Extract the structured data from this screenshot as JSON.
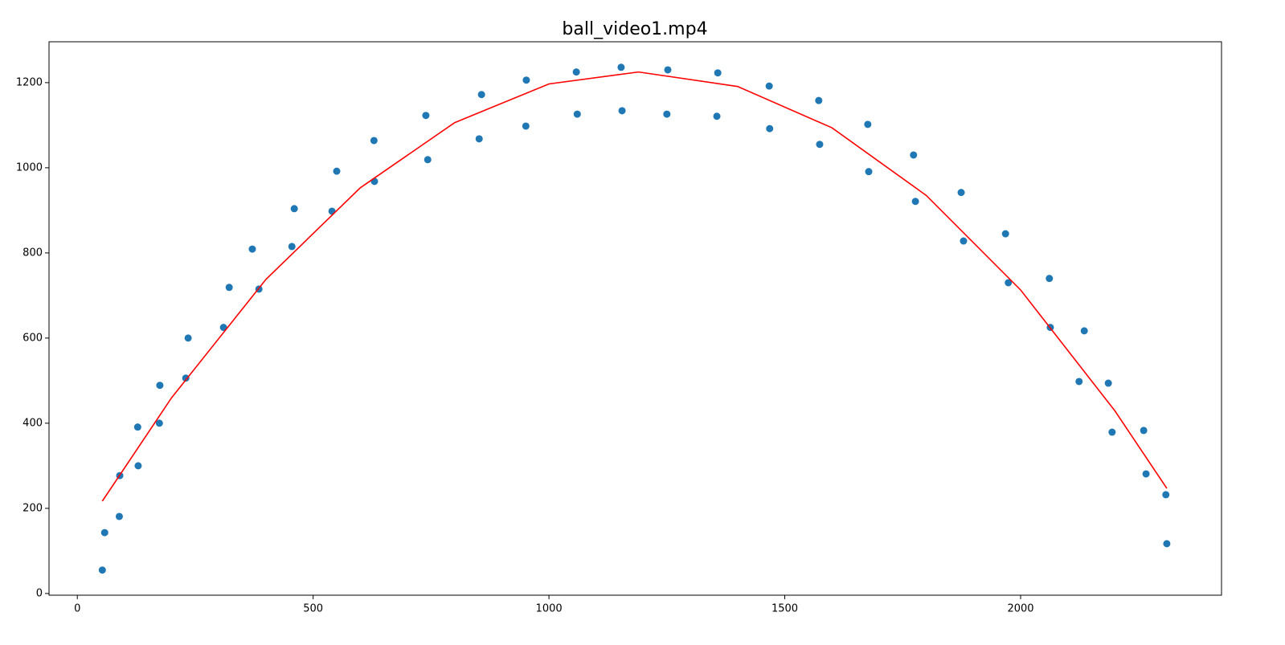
{
  "chart_data": {
    "type": "scatter",
    "title": "ball_video1.mp4",
    "xlim": [
      -60,
      2426
    ],
    "ylim": [
      -4,
      1296
    ],
    "xticks": [
      0,
      500,
      1000,
      1500,
      2000
    ],
    "yticks": [
      0,
      200,
      400,
      600,
      800,
      1000,
      1200
    ],
    "grid": false,
    "series": [
      {
        "type": "scatter",
        "color": "#1f77b4",
        "x": [
          53,
          58,
          89,
          90,
          128,
          129,
          174,
          175,
          230,
          235,
          310,
          322,
          371,
          385,
          455,
          460,
          540,
          550,
          629,
          630,
          739,
          743,
          852,
          857,
          951,
          952,
          1058,
          1060,
          1153,
          1155,
          1250,
          1252,
          1356,
          1358,
          1467,
          1468,
          1572,
          1574,
          1676,
          1678,
          1773,
          1777,
          1874,
          1879,
          1968,
          1974,
          2061,
          2063,
          2124,
          2135,
          2186,
          2194,
          2261,
          2266,
          2308,
          2310
        ],
        "values": [
          55,
          143,
          181,
          277,
          391,
          300,
          400,
          489,
          506,
          600,
          625,
          719,
          809,
          715,
          815,
          904,
          898,
          992,
          1064,
          968,
          1123,
          1019,
          1068,
          1172,
          1098,
          1206,
          1225,
          1126,
          1236,
          1134,
          1126,
          1230,
          1121,
          1223,
          1192,
          1092,
          1158,
          1055,
          1102,
          991,
          1030,
          921,
          942,
          828,
          845,
          730,
          740,
          625,
          498,
          617,
          494,
          379,
          383,
          281,
          232,
          117
        ]
      },
      {
        "type": "line",
        "color": "#ff0000",
        "x": [
          53,
          200,
          400,
          600,
          800,
          1000,
          1190,
          1400,
          1600,
          1800,
          2000,
          2200,
          2310
        ],
        "values": [
          217,
          460,
          738,
          953,
          1106,
          1197,
          1225,
          1191,
          1094,
          935,
          713,
          429,
          247
        ]
      }
    ]
  }
}
